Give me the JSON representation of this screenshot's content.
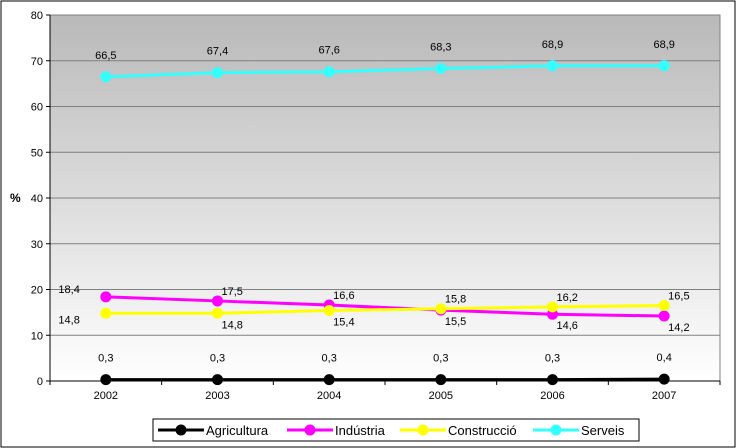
{
  "chart_data": {
    "type": "line",
    "title": "",
    "xlabel": "",
    "ylabel": "%",
    "ylim": [
      0,
      80
    ],
    "yticks": [
      0,
      10,
      20,
      30,
      40,
      50,
      60,
      70,
      80
    ],
    "categories": [
      "2002",
      "2003",
      "2004",
      "2005",
      "2006",
      "2007"
    ],
    "grid": true,
    "legend_position": "bottom",
    "series": [
      {
        "name": "Agricultura",
        "color": "#000000",
        "values": [
          0.3,
          0.3,
          0.3,
          0.3,
          0.3,
          0.4
        ],
        "labels": [
          "0,3",
          "0,3",
          "0,3",
          "0,3",
          "0,3",
          "0,4"
        ]
      },
      {
        "name": "Indústria",
        "color": "#FF00FF",
        "values": [
          18.4,
          17.5,
          16.6,
          15.5,
          14.6,
          14.2
        ],
        "labels": [
          "18,4",
          "17,5",
          "16,6",
          "15,5",
          "14,6",
          "14,2"
        ]
      },
      {
        "name": "Construcció",
        "color": "#FFFF00",
        "values": [
          14.8,
          14.8,
          15.4,
          15.8,
          16.2,
          16.5
        ],
        "labels": [
          "14,8",
          "14,8",
          "15,4",
          "15,8",
          "16,2",
          "16,5"
        ]
      },
      {
        "name": "Serveis",
        "color": "#33FFFF",
        "values": [
          66.5,
          67.4,
          67.6,
          68.3,
          68.9,
          68.9
        ],
        "labels": [
          "66,5",
          "67,4",
          "67,6",
          "68,3",
          "68,9",
          "68,9"
        ]
      }
    ]
  }
}
